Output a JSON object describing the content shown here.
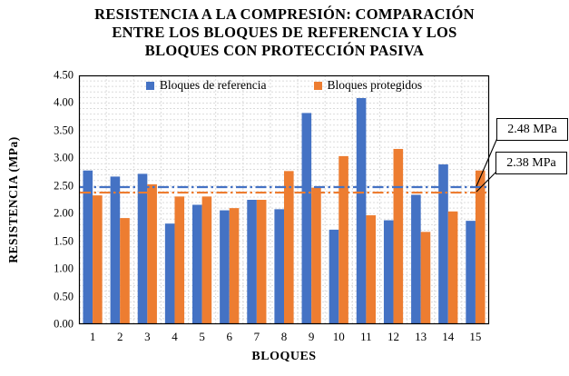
{
  "chart_data": {
    "type": "bar",
    "title_lines": [
      "RESISTENCIA A LA COMPRESIÓN: COMPARACIÓN",
      "ENTRE LOS BLOQUES DE REFERENCIA Y LOS",
      "BLOQUES CON PROTECCIÓN PASIVA"
    ],
    "xlabel": "BLOQUES",
    "ylabel": "RESISTENCIA (MPa)",
    "categories": [
      "1",
      "2",
      "3",
      "4",
      "5",
      "6",
      "7",
      "8",
      "9",
      "10",
      "11",
      "12",
      "13",
      "14",
      "15"
    ],
    "series": [
      {
        "key": "referencia",
        "name": "Bloques de referencia",
        "color": "#4472C4",
        "values": [
          2.78,
          2.67,
          2.72,
          1.82,
          2.16,
          2.06,
          2.25,
          2.08,
          3.82,
          1.71,
          4.09,
          1.88,
          2.34,
          2.89,
          1.87
        ]
      },
      {
        "key": "protegidos",
        "name": "Bloques protegidos",
        "color": "#ED7D31",
        "values": [
          2.33,
          1.92,
          2.53,
          2.31,
          2.31,
          2.1,
          2.25,
          2.77,
          2.47,
          3.04,
          1.97,
          3.17,
          1.67,
          2.04,
          2.78
        ]
      }
    ],
    "ylim": [
      0,
      4.5
    ],
    "y_ticks": [
      "0.00",
      "0.50",
      "1.00",
      "1.50",
      "2.00",
      "2.50",
      "3.00",
      "3.50",
      "4.00",
      "4.50"
    ],
    "grid": {
      "minor_step": 0.1,
      "color": "#DBDBDB",
      "on": true
    },
    "axis_color": "#000000",
    "legend_position": "top-inside",
    "mean_lines": [
      {
        "label": "2.48 MPa",
        "value": 2.48,
        "color": "#4472C4"
      },
      {
        "label": "2.38 MPa",
        "value": 2.38,
        "color": "#ED7D31"
      }
    ]
  }
}
